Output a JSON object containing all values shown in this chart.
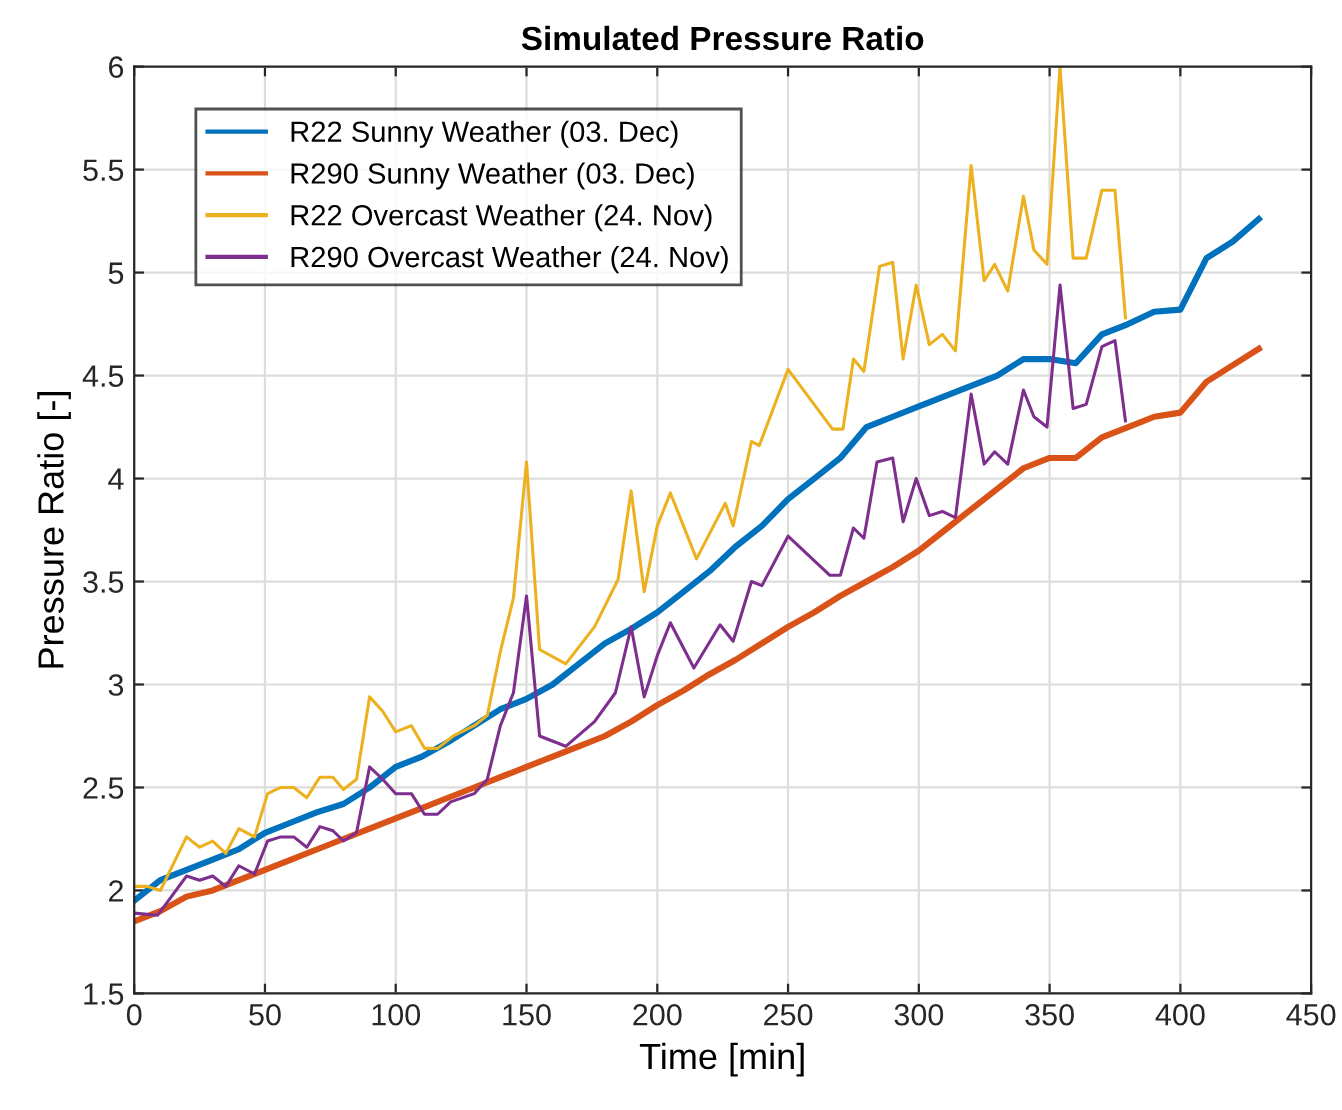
{
  "chart_data": {
    "type": "line",
    "title": "Simulated Pressure Ratio",
    "xlabel": "Time [min]",
    "ylabel": "Pressure Ratio [-]",
    "xlim": [
      0,
      450
    ],
    "xticks": [
      0,
      50,
      100,
      150,
      200,
      250,
      300,
      350,
      400,
      450
    ],
    "ylim": [
      1.5,
      6
    ],
    "yticks": [
      1.5,
      2,
      2.5,
      3,
      3.5,
      4,
      4.5,
      5,
      5.5,
      6
    ],
    "grid": true,
    "legend": "top left",
    "line_style": "solid",
    "marker": "none",
    "series": [
      {
        "name": "R22 Sunny Weather (03. Dec)",
        "color": "#0072bd",
        "x": [
          0,
          10,
          20,
          30,
          40,
          50,
          60,
          70,
          80,
          90,
          100,
          110,
          120,
          130,
          140,
          150,
          160,
          170,
          180,
          190,
          200,
          210,
          220,
          230,
          240,
          250,
          260,
          270,
          280,
          290,
          300,
          310,
          320,
          330,
          340,
          350,
          360,
          370,
          380,
          390,
          400,
          410,
          420,
          430
        ],
        "values": [
          1.95,
          2.05,
          2.1,
          2.15,
          2.2,
          2.28,
          2.33,
          2.38,
          2.42,
          2.5,
          2.6,
          2.65,
          2.72,
          2.8,
          2.88,
          2.93,
          3.0,
          3.1,
          3.2,
          3.27,
          3.35,
          3.45,
          3.55,
          3.67,
          3.77,
          3.9,
          4.0,
          4.1,
          4.25,
          4.3,
          4.35,
          4.4,
          4.45,
          4.5,
          4.58,
          4.58,
          4.56,
          4.7,
          4.75,
          4.81,
          4.82,
          5.07,
          5.15,
          5.26
        ]
      },
      {
        "name": "R290 Sunny Weather (03. Dec)",
        "color": "#d95319",
        "x": [
          0,
          10,
          20,
          30,
          40,
          50,
          60,
          70,
          80,
          90,
          100,
          110,
          120,
          130,
          140,
          150,
          160,
          170,
          180,
          190,
          200,
          210,
          220,
          230,
          240,
          250,
          260,
          270,
          280,
          290,
          300,
          310,
          320,
          330,
          340,
          350,
          360,
          370,
          380,
          390,
          400,
          410,
          420,
          430
        ],
        "values": [
          1.85,
          1.9,
          1.97,
          2.0,
          2.05,
          2.1,
          2.15,
          2.2,
          2.25,
          2.3,
          2.35,
          2.4,
          2.45,
          2.5,
          2.55,
          2.6,
          2.65,
          2.7,
          2.75,
          2.82,
          2.9,
          2.97,
          3.05,
          3.12,
          3.2,
          3.28,
          3.35,
          3.43,
          3.5,
          3.57,
          3.65,
          3.75,
          3.85,
          3.95,
          4.05,
          4.1,
          4.1,
          4.2,
          4.25,
          4.3,
          4.32,
          4.47,
          4.55,
          4.63
        ]
      },
      {
        "name": "R22 Overcast Weather (24. Nov)",
        "color": "#edb120",
        "x": [
          0,
          5,
          10,
          20,
          25,
          30,
          35,
          40,
          46,
          51,
          56,
          61,
          66,
          71,
          76,
          80,
          85,
          90,
          95,
          100,
          106,
          111,
          116,
          122,
          130,
          135,
          140,
          145,
          150,
          155,
          165,
          176,
          185,
          190,
          195,
          200,
          205,
          215,
          226,
          229,
          236,
          239,
          250,
          267,
          271,
          275,
          279,
          285,
          290,
          294,
          299,
          304,
          309,
          314,
          320,
          325,
          329,
          334,
          340,
          344,
          349,
          354,
          359,
          364,
          370,
          375,
          379
        ],
        "values": [
          2.02,
          2.02,
          2.0,
          2.26,
          2.21,
          2.24,
          2.18,
          2.3,
          2.26,
          2.47,
          2.5,
          2.5,
          2.45,
          2.55,
          2.55,
          2.49,
          2.54,
          2.94,
          2.87,
          2.77,
          2.8,
          2.69,
          2.69,
          2.75,
          2.8,
          2.85,
          3.16,
          3.42,
          4.08,
          3.17,
          3.1,
          3.28,
          3.51,
          3.94,
          3.45,
          3.77,
          3.93,
          3.61,
          3.88,
          3.77,
          4.18,
          4.16,
          4.53,
          4.24,
          4.24,
          4.58,
          4.52,
          5.03,
          5.05,
          4.58,
          4.94,
          4.65,
          4.7,
          4.62,
          5.52,
          4.96,
          5.04,
          4.91,
          5.37,
          5.11,
          5.04,
          6.0,
          5.07,
          5.07,
          5.4,
          5.4,
          4.78
        ]
      },
      {
        "name": "R290 Overcast Weather (24. Nov)",
        "color": "#7e2f8e",
        "x": [
          0,
          9,
          20,
          25,
          30,
          35,
          40,
          46,
          51,
          56,
          61,
          66,
          71,
          76,
          80,
          85,
          90,
          95,
          100,
          106,
          111,
          116,
          121,
          130,
          135,
          140,
          145,
          150,
          155,
          165,
          176,
          184,
          190,
          195,
          200,
          205,
          214,
          224,
          229,
          236,
          240,
          250,
          266,
          270,
          275,
          279,
          284,
          290,
          294,
          299,
          304,
          309,
          314,
          320,
          325,
          329,
          334,
          340,
          344,
          349,
          354,
          359,
          364,
          370,
          375,
          379
        ],
        "values": [
          1.89,
          1.88,
          2.07,
          2.05,
          2.07,
          2.02,
          2.12,
          2.08,
          2.24,
          2.26,
          2.26,
          2.21,
          2.31,
          2.29,
          2.24,
          2.28,
          2.6,
          2.54,
          2.47,
          2.47,
          2.37,
          2.37,
          2.43,
          2.47,
          2.54,
          2.8,
          2.96,
          3.43,
          2.75,
          2.7,
          2.82,
          2.96,
          3.28,
          2.94,
          3.14,
          3.3,
          3.08,
          3.29,
          3.21,
          3.5,
          3.48,
          3.72,
          3.53,
          3.53,
          3.76,
          3.71,
          4.08,
          4.1,
          3.79,
          4.0,
          3.82,
          3.84,
          3.81,
          4.41,
          4.07,
          4.13,
          4.07,
          4.43,
          4.3,
          4.25,
          4.94,
          4.34,
          4.36,
          4.64,
          4.67,
          4.28
        ]
      }
    ]
  }
}
